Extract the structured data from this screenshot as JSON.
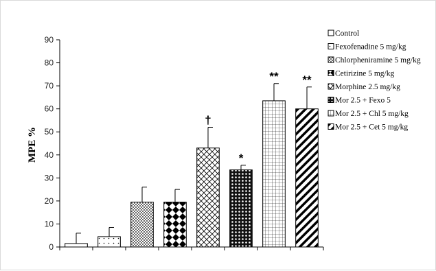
{
  "chart_data": {
    "type": "bar",
    "title": "",
    "xlabel": "",
    "ylabel": "MPE %",
    "ylim": [
      0,
      90
    ],
    "yticks": [
      0,
      10,
      20,
      30,
      40,
      50,
      60,
      70,
      80,
      90
    ],
    "grid": false,
    "legend_position": "right",
    "categories": [
      "Control",
      "Fexofenadine 5 mg/kg",
      "Chlorpheniramine 5 mg/kg",
      "Cetirizine 5 mg/kg",
      "Morphine 2.5 mg/kg",
      "Mor 2.5 + Fexo 5",
      "Mor 2.5 + Chl 5 mg/kg",
      "Mor 2.5 + Cet 5 mg/kg"
    ],
    "values": [
      1.5,
      4.5,
      19.5,
      19.5,
      43,
      33.5,
      63.5,
      60
    ],
    "errors": [
      4.5,
      4,
      6.5,
      5.5,
      9,
      2,
      7.5,
      9.5
    ],
    "annotations": [
      "",
      "",
      "",
      "",
      "†",
      "*",
      "**",
      "**"
    ],
    "patterns": [
      "blank",
      "dots",
      "dense-dots",
      "diamonds",
      "crosshatch",
      "dark-dots",
      "grid",
      "diagonal"
    ]
  }
}
